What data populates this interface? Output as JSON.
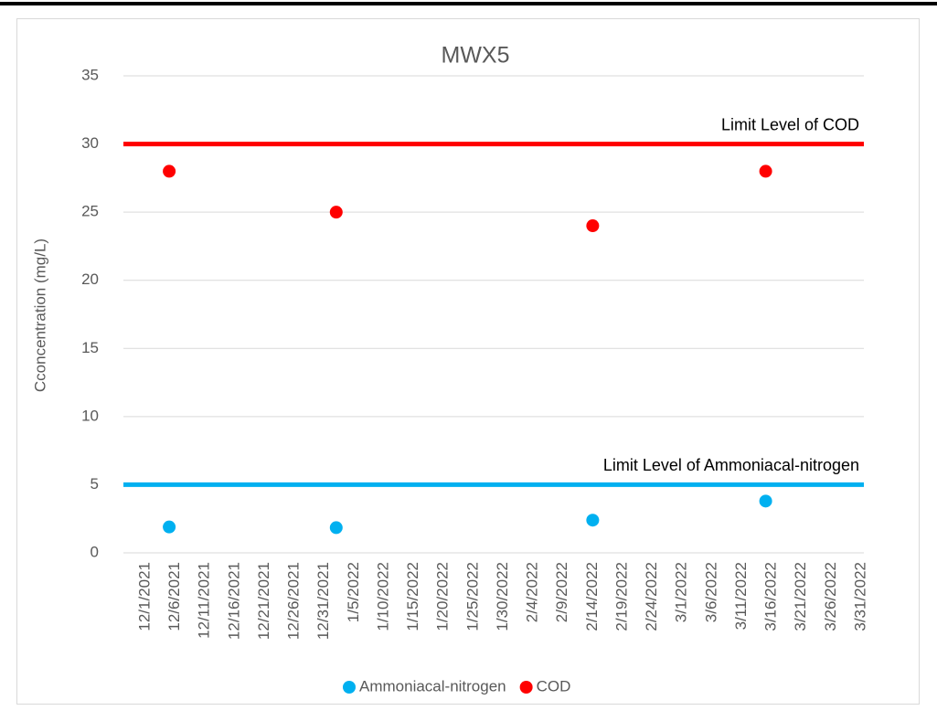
{
  "chart_data": {
    "type": "scatter",
    "title": "MWX5",
    "y_label": "Cconcentration (mg/L)",
    "x": [
      "12/5/2021",
      "1/2/2022",
      "2/14/2022",
      "3/15/2022"
    ],
    "series": [
      {
        "name": "Ammoniacal-nitrogen",
        "color": "#00b0f0",
        "values": [
          1.9,
          1.85,
          2.4,
          3.8
        ]
      },
      {
        "name": "COD",
        "color": "#ff0000",
        "values": [
          28,
          25,
          24,
          28
        ]
      }
    ],
    "reference_lines": [
      {
        "label": "Limit Level of COD",
        "value": 30,
        "color": "#ff0000"
      },
      {
        "label": "Limit Level of Ammoniacal-nitrogen",
        "value": 5,
        "color": "#00b0f0"
      }
    ],
    "ylim": [
      0,
      35
    ],
    "yticks": [
      0,
      5,
      10,
      15,
      20,
      25,
      30,
      35
    ],
    "xlim": [
      "12/1/2021",
      "3/31/2022"
    ],
    "xticks": [
      "12/1/2021",
      "12/6/2021",
      "12/11/2021",
      "12/16/2021",
      "12/21/2021",
      "12/26/2021",
      "12/31/2021",
      "1/5/2022",
      "1/10/2022",
      "1/15/2022",
      "1/20/2022",
      "1/25/2022",
      "1/30/2022",
      "2/4/2022",
      "2/9/2022",
      "2/14/2022",
      "2/19/2022",
      "2/24/2022",
      "3/1/2022",
      "3/6/2022",
      "3/11/2022",
      "3/16/2022",
      "3/21/2022",
      "3/26/2022",
      "3/31/2022"
    ],
    "grid": true,
    "legend": "bottom"
  }
}
